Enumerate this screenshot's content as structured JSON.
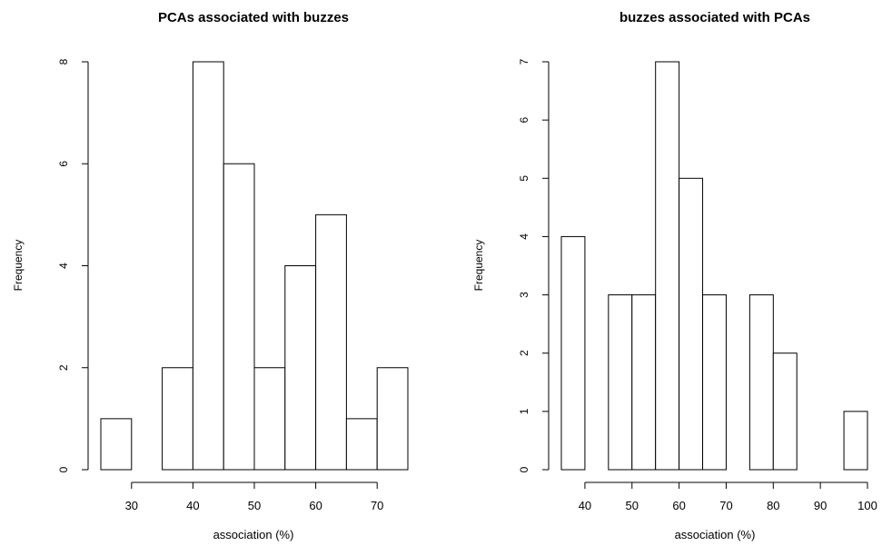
{
  "chart_data": [
    {
      "type": "bar",
      "title": "PCAs associated with buzzes",
      "xlabel": "association (%)",
      "ylabel": "Frequency",
      "bins": [
        {
          "from": 25,
          "to": 30,
          "count": 1
        },
        {
          "from": 30,
          "to": 35,
          "count": 0
        },
        {
          "from": 35,
          "to": 40,
          "count": 2
        },
        {
          "from": 40,
          "to": 45,
          "count": 8
        },
        {
          "from": 45,
          "to": 50,
          "count": 6
        },
        {
          "from": 50,
          "to": 55,
          "count": 2
        },
        {
          "from": 55,
          "to": 60,
          "count": 4
        },
        {
          "from": 60,
          "to": 65,
          "count": 5
        },
        {
          "from": 65,
          "to": 70,
          "count": 1
        },
        {
          "from": 70,
          "to": 75,
          "count": 2
        }
      ],
      "xlim": [
        25,
        75
      ],
      "ylim": [
        0,
        8
      ],
      "xticks": [
        "30",
        "40",
        "50",
        "60",
        "70"
      ],
      "yticks": [
        "0",
        "2",
        "4",
        "6",
        "8"
      ],
      "grid": false
    },
    {
      "type": "bar",
      "title": "buzzes associated with PCAs",
      "xlabel": "association (%)",
      "ylabel": "Frequency",
      "bins": [
        {
          "from": 35,
          "to": 40,
          "count": 4
        },
        {
          "from": 40,
          "to": 45,
          "count": 0
        },
        {
          "from": 45,
          "to": 50,
          "count": 3
        },
        {
          "from": 50,
          "to": 55,
          "count": 3
        },
        {
          "from": 55,
          "to": 60,
          "count": 7
        },
        {
          "from": 60,
          "to": 65,
          "count": 5
        },
        {
          "from": 65,
          "to": 70,
          "count": 3
        },
        {
          "from": 70,
          "to": 75,
          "count": 0
        },
        {
          "from": 75,
          "to": 80,
          "count": 3
        },
        {
          "from": 80,
          "to": 85,
          "count": 2
        },
        {
          "from": 85,
          "to": 90,
          "count": 0
        },
        {
          "from": 90,
          "to": 95,
          "count": 0
        },
        {
          "from": 95,
          "to": 100,
          "count": 1
        }
      ],
      "xlim": [
        35,
        100
      ],
      "ylim": [
        0,
        7
      ],
      "xticks": [
        "40",
        "50",
        "60",
        "70",
        "80",
        "90",
        "100"
      ],
      "yticks": [
        "0",
        "1",
        "2",
        "3",
        "4",
        "5",
        "6",
        "7"
      ],
      "grid": false
    }
  ]
}
